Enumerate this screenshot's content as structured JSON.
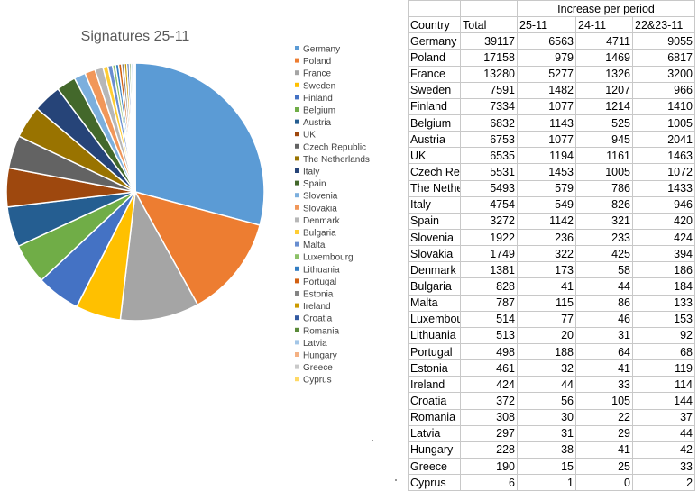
{
  "chart_data": [
    {
      "type": "pie",
      "title": "Signatures 25-11",
      "legend_position": "right",
      "categories": [
        "Germany",
        "Poland",
        "France",
        "Sweden",
        "Finland",
        "Belgium",
        "Austria",
        "UK",
        "Czech Republic",
        "The Netherlands",
        "Italy",
        "Spain",
        "Slovenia",
        "Slovakia",
        "Denmark",
        "Bulgaria",
        "Malta",
        "Luxembourg",
        "Lithuania",
        "Portugal",
        "Estonia",
        "Ireland",
        "Croatia",
        "Romania",
        "Latvia",
        "Hungary",
        "Greece",
        "Cyprus"
      ],
      "values": [
        39117,
        17158,
        13280,
        7591,
        7334,
        6832,
        6753,
        6535,
        5531,
        5493,
        4754,
        3272,
        1922,
        1749,
        1381,
        828,
        787,
        514,
        513,
        498,
        461,
        424,
        372,
        308,
        297,
        228,
        190,
        6
      ],
      "colors": [
        "#5b9bd5",
        "#ed7d31",
        "#a5a5a5",
        "#ffc000",
        "#4472c4",
        "#70ad47",
        "#255e91",
        "#9e480e",
        "#636363",
        "#997300",
        "#264478",
        "#43682b",
        "#7cafdd",
        "#f1975a",
        "#b7b7b7",
        "#ffcd33",
        "#698ed0",
        "#8cc168",
        "#327dc2",
        "#d26012",
        "#848484",
        "#cc9a00",
        "#335aa1",
        "#5a8a39",
        "#a3c6e7",
        "#f4b183",
        "#c9c9c9",
        "#ffd966"
      ]
    },
    {
      "type": "table",
      "super_header": "Increase per period",
      "columns": [
        "Country",
        "Total",
        "25-11",
        "24-11",
        "22&23-11"
      ],
      "rows": [
        [
          "Germany",
          "39117",
          "6563",
          "4711",
          "9055"
        ],
        [
          "Poland",
          "17158",
          "979",
          "1469",
          "6817"
        ],
        [
          "France",
          "13280",
          "5277",
          "1326",
          "3200"
        ],
        [
          "Sweden",
          "7591",
          "1482",
          "1207",
          "966"
        ],
        [
          "Finland",
          "7334",
          "1077",
          "1214",
          "1410"
        ],
        [
          "Belgium",
          "6832",
          "1143",
          "525",
          "1005"
        ],
        [
          "Austria",
          "6753",
          "1077",
          "945",
          "2041"
        ],
        [
          "UK",
          "6535",
          "1194",
          "1161",
          "1463"
        ],
        [
          "Czech Rep",
          "5531",
          "1453",
          "1005",
          "1072"
        ],
        [
          "The Nethe",
          "5493",
          "579",
          "786",
          "1433"
        ],
        [
          "Italy",
          "4754",
          "549",
          "826",
          "946"
        ],
        [
          "Spain",
          "3272",
          "1142",
          "321",
          "420"
        ],
        [
          "Slovenia",
          "1922",
          "236",
          "233",
          "424"
        ],
        [
          "Slovakia",
          "1749",
          "322",
          "425",
          "394"
        ],
        [
          "Denmark",
          "1381",
          "173",
          "58",
          "186"
        ],
        [
          "Bulgaria",
          "828",
          "41",
          "44",
          "184"
        ],
        [
          "Malta",
          "787",
          "115",
          "86",
          "133"
        ],
        [
          "Luxembou",
          "514",
          "77",
          "46",
          "153"
        ],
        [
          "Lithuania",
          "513",
          "20",
          "31",
          "92"
        ],
        [
          "Portugal",
          "498",
          "188",
          "64",
          "68"
        ],
        [
          "Estonia",
          "461",
          "32",
          "41",
          "119"
        ],
        [
          "Ireland",
          "424",
          "44",
          "33",
          "114"
        ],
        [
          "Croatia",
          "372",
          "56",
          "105",
          "144"
        ],
        [
          "Romania",
          "308",
          "30",
          "22",
          "37"
        ],
        [
          "Latvia",
          "297",
          "31",
          "29",
          "44"
        ],
        [
          "Hungary",
          "228",
          "38",
          "41",
          "42"
        ],
        [
          "Greece",
          "190",
          "15",
          "25",
          "33"
        ],
        [
          "Cyprus",
          "6",
          "1",
          "0",
          "2"
        ]
      ]
    }
  ]
}
